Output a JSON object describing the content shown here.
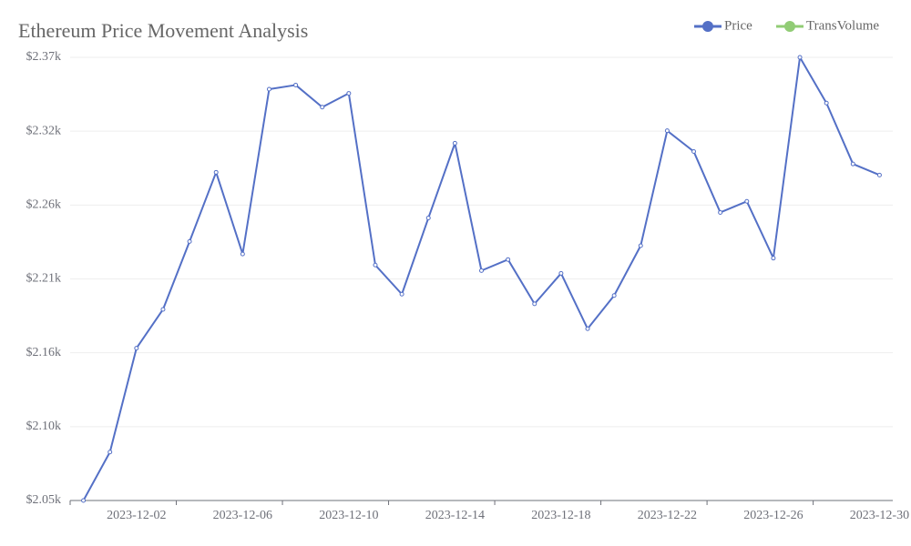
{
  "chart_data": {
    "type": "line",
    "title": "Ethereum Price Movement Analysis",
    "categories": [
      null,
      null,
      "2023-12-02",
      null,
      null,
      null,
      "2023-12-06",
      null,
      null,
      null,
      "2023-12-10",
      null,
      null,
      null,
      "2023-12-14",
      null,
      null,
      null,
      "2023-12-18",
      null,
      null,
      null,
      "2023-12-22",
      null,
      null,
      null,
      "2023-12-26",
      null,
      null,
      null,
      "2023-12-30"
    ],
    "series": [
      {
        "name": "Price",
        "color": "#5470c6",
        "values": [
          2050,
          2085,
          2160,
          2188,
          2237,
          2287,
          2228,
          2347,
          2350,
          2334,
          2344,
          2220,
          2199,
          2254,
          2308,
          2216,
          2224,
          2192,
          2214,
          2174,
          2198,
          2234,
          2317,
          2302,
          2258,
          2266,
          2225,
          2370,
          2337,
          2293,
          2285
        ]
      },
      {
        "name": "TransVolume",
        "color": "#91cc75",
        "values": [
          null,
          null,
          null,
          null,
          null,
          null,
          null,
          null,
          null,
          null,
          null,
          null,
          null,
          null,
          null,
          null,
          null,
          null,
          null,
          null,
          null,
          null,
          null,
          null,
          null,
          null,
          null,
          null,
          null,
          null,
          null
        ]
      }
    ],
    "ylim": [
      2050,
      2370
    ],
    "yticks": [
      {
        "value": 2050,
        "label": "$2.05k"
      },
      {
        "value": 2103.33,
        "label": "$2.10k"
      },
      {
        "value": 2156.67,
        "label": "$2.16k"
      },
      {
        "value": 2210,
        "label": "$2.21k"
      },
      {
        "value": 2263.33,
        "label": "$2.26k"
      },
      {
        "value": 2316.67,
        "label": "$2.32k"
      },
      {
        "value": 2370,
        "label": "$2.37k"
      }
    ],
    "grid": true,
    "legend": "top-right"
  }
}
